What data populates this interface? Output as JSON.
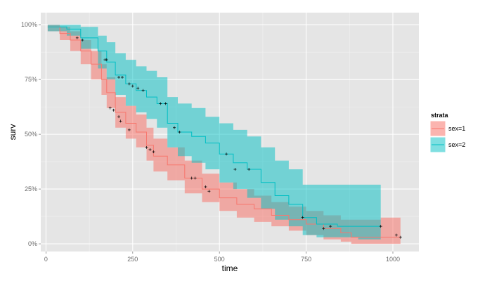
{
  "chart_data": {
    "type": "line",
    "xlabel": "time",
    "ylabel": "surv",
    "xlim": [
      -15,
      1075
    ],
    "ylim": [
      -0.035,
      1.055
    ],
    "x_ticks": [
      0,
      250,
      500,
      750,
      1000
    ],
    "y_ticks": [
      0,
      0.25,
      0.5,
      0.75,
      1
    ],
    "y_tick_labels": [
      "0%",
      "25%",
      "50%",
      "75%",
      "100%"
    ],
    "grid": true,
    "legend": {
      "title": "strata",
      "position": "right"
    },
    "series": [
      {
        "name": "sex=1",
        "color": "#F8766D",
        "fill": "rgba(248,118,109,0.55)",
        "x": [
          5,
          40,
          70,
          100,
          130,
          160,
          175,
          200,
          230,
          260,
          290,
          310,
          350,
          400,
          450,
          500,
          550,
          600,
          650,
          700,
          750,
          800,
          850,
          880,
          965,
          1022
        ],
        "surv": [
          0.99,
          0.96,
          0.93,
          0.88,
          0.82,
          0.75,
          0.69,
          0.6,
          0.55,
          0.51,
          0.45,
          0.4,
          0.36,
          0.3,
          0.25,
          0.21,
          0.18,
          0.16,
          0.13,
          0.11,
          0.09,
          0.07,
          0.05,
          0.03,
          0.03,
          0.03
        ],
        "upper": [
          1.0,
          0.99,
          0.97,
          0.93,
          0.88,
          0.82,
          0.76,
          0.67,
          0.63,
          0.59,
          0.53,
          0.48,
          0.44,
          0.38,
          0.32,
          0.28,
          0.25,
          0.22,
          0.19,
          0.17,
          0.15,
          0.13,
          0.11,
          0.11,
          0.12,
          0.12
        ],
        "lower": [
          0.97,
          0.93,
          0.88,
          0.82,
          0.75,
          0.68,
          0.62,
          0.53,
          0.48,
          0.44,
          0.38,
          0.33,
          0.29,
          0.23,
          0.19,
          0.15,
          0.12,
          0.1,
          0.08,
          0.06,
          0.04,
          0.02,
          0.01,
          0.0,
          0.0,
          0.0
        ],
        "censor_x": [
          185,
          195,
          210,
          215,
          240,
          290,
          300,
          310,
          420,
          430,
          460,
          470,
          800,
          1010,
          1022
        ],
        "censor_y": [
          0.62,
          0.61,
          0.58,
          0.56,
          0.52,
          0.44,
          0.43,
          0.42,
          0.3,
          0.3,
          0.26,
          0.24,
          0.07,
          0.04,
          0.03
        ]
      },
      {
        "name": "sex=2",
        "color": "#00BFC4",
        "fill": "rgba(0,191,196,0.50)",
        "x": [
          5,
          60,
          100,
          150,
          175,
          200,
          230,
          260,
          290,
          320,
          350,
          380,
          420,
          460,
          500,
          540,
          580,
          620,
          660,
          700,
          740,
          780,
          840,
          900,
          965
        ],
        "surv": [
          0.99,
          0.98,
          0.94,
          0.88,
          0.83,
          0.77,
          0.73,
          0.7,
          0.67,
          0.64,
          0.55,
          0.51,
          0.49,
          0.46,
          0.41,
          0.37,
          0.34,
          0.28,
          0.22,
          0.18,
          0.12,
          0.09,
          0.08,
          0.08,
          0.08
        ],
        "upper": [
          1.0,
          1.0,
          0.99,
          0.95,
          0.92,
          0.87,
          0.84,
          0.81,
          0.79,
          0.76,
          0.67,
          0.64,
          0.62,
          0.58,
          0.55,
          0.52,
          0.49,
          0.44,
          0.38,
          0.34,
          0.27,
          0.27,
          0.27,
          0.27,
          0.27
        ],
        "lower": [
          0.97,
          0.95,
          0.89,
          0.8,
          0.75,
          0.68,
          0.63,
          0.6,
          0.57,
          0.53,
          0.44,
          0.4,
          0.37,
          0.34,
          0.28,
          0.25,
          0.21,
          0.16,
          0.11,
          0.08,
          0.04,
          0.03,
          0.03,
          0.02,
          0.02
        ],
        "censor_x": [
          90,
          105,
          170,
          175,
          210,
          220,
          240,
          250,
          265,
          280,
          330,
          345,
          370,
          385,
          520,
          545,
          585,
          740,
          820,
          965
        ],
        "censor_y": [
          0.94,
          0.93,
          0.84,
          0.84,
          0.76,
          0.76,
          0.73,
          0.72,
          0.71,
          0.7,
          0.64,
          0.64,
          0.53,
          0.51,
          0.41,
          0.34,
          0.34,
          0.12,
          0.08,
          0.08
        ]
      }
    ]
  }
}
